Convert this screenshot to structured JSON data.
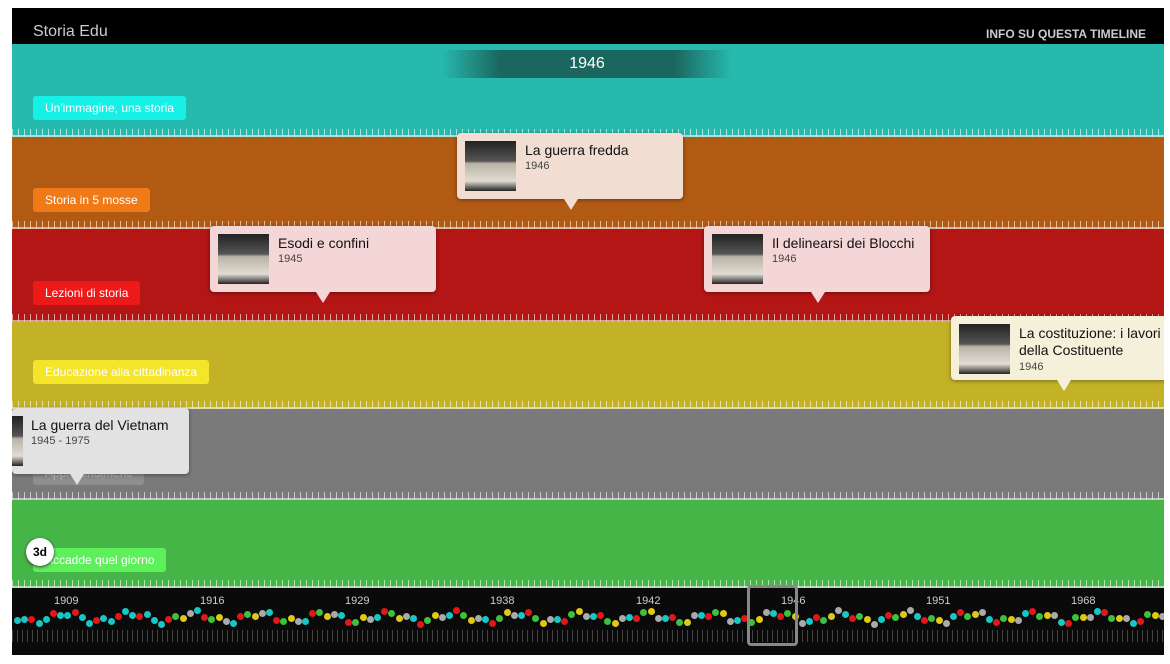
{
  "header": {
    "title": "Storia Edu",
    "info_link": "INFO SU QUESTA TIMELINE"
  },
  "current_year": "1946",
  "bands": [
    {
      "label": "Un'immagine, una storia",
      "color": "#26b9ad",
      "label_color": "#16f0e6"
    },
    {
      "label": "Storia in 5 mosse",
      "color": "#b15a14",
      "label_color": "#f07a18"
    },
    {
      "label": "Lezioni di storia",
      "color": "#b41616",
      "label_color": "#ee1a1a"
    },
    {
      "label": "Educazione alla cittadinanza",
      "color": "#c4b226",
      "label_color": "#f4e42a"
    },
    {
      "label": "Approfondimenti",
      "color": "#7a7a7a",
      "label_color": "#8e8e8e"
    },
    {
      "label": "Accadde quel giorno",
      "color": "#46b548",
      "label_color": "#5ef05a"
    }
  ],
  "cards": [
    {
      "title": "La guerra fredda",
      "date": "1946",
      "bg": "#f2ddd2"
    },
    {
      "title": "Esodi e confini",
      "date": "1945",
      "bg": "#f4d6d6"
    },
    {
      "title": "Il delinearsi dei Blocchi",
      "date": "1946",
      "bg": "#f4d6d6"
    },
    {
      "title": "La costituzione: i lavori della Costituente",
      "date": "1946",
      "bg": "#f4f0da"
    },
    {
      "title": "La guerra del Vietnam",
      "date": "1945 - 1975",
      "bg": "#e2e2e2"
    }
  ],
  "badge": "3d",
  "navigator": {
    "ticks": [
      "1909",
      "1916",
      "1929",
      "1938",
      "1942",
      "1946",
      "1951",
      "1968"
    ],
    "dot_colors": [
      "#19c6c6",
      "#e01818",
      "#3cc23c",
      "#e0c818",
      "#aaaaaa",
      "#e07818"
    ]
  }
}
